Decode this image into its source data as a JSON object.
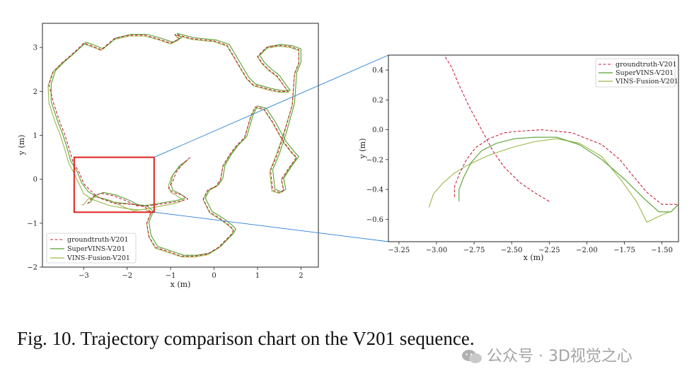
{
  "caption": "Fig. 10.  Trajectory comparison chart on the V201 sequence.",
  "watermark": "公众号 · 3D视觉之心",
  "chart_data": [
    {
      "type": "line",
      "panel": "full-trajectory",
      "title": "",
      "xlabel": "x (m)",
      "ylabel": "y (m)",
      "xlim": [
        -3.95,
        2.4
      ],
      "ylim": [
        -2.0,
        3.55
      ],
      "xticks": [
        "−3",
        "−2",
        "−1",
        "0",
        "1",
        "2"
      ],
      "xtick_values": [
        -3,
        -2,
        -1,
        0,
        1,
        2
      ],
      "yticks": [
        "−2",
        "−1",
        "0",
        "1",
        "2",
        "3"
      ],
      "ytick_values": [
        -2,
        -1,
        0,
        1,
        2,
        3
      ],
      "grid": false,
      "legend_position": "lower-left",
      "zoom_box": {
        "x": [
          -3.22,
          -1.38
        ],
        "y": [
          -0.75,
          0.5
        ],
        "color": "#e02020"
      },
      "series": [
        {
          "name": "groundtruth-V201",
          "color": "#c8223a",
          "dash": "4,2.5",
          "x": [
            -0.55,
            -0.72,
            -0.88,
            -0.95,
            -1.05,
            -0.95,
            -0.75,
            -0.6,
            -0.8,
            -1.6,
            -1.85,
            -2.3,
            -2.65,
            -2.8,
            -3.0,
            -3.1,
            -3.25,
            -3.35,
            -3.45,
            -3.55,
            -3.7,
            -3.8,
            -3.7,
            -3.5,
            -3.3,
            -3.1,
            -3.0,
            -2.85,
            -2.6,
            -2.3,
            -1.95,
            -1.6,
            -1.3,
            -1.0,
            -0.8,
            -0.9,
            -0.5,
            0.0,
            0.3,
            0.6,
            0.75,
            0.9,
            1.25,
            1.5,
            1.7,
            1.45,
            1.25,
            1.1,
            1.0,
            1.2,
            1.5,
            1.75,
            1.95,
            1.95,
            1.85,
            1.8,
            1.6,
            1.45,
            1.3,
            1.35,
            1.5,
            1.6,
            1.55,
            1.75,
            1.9,
            1.8,
            1.6,
            1.35,
            1.15,
            0.95,
            0.85,
            0.7,
            0.5,
            0.35,
            0.2,
            0.15,
            0.05,
            -0.15,
            -0.25,
            -0.1,
            0.15,
            0.35,
            0.45,
            0.4,
            0.3,
            0.1,
            -0.15,
            -0.45,
            -0.75,
            -0.95,
            -1.35,
            -1.5,
            -1.55,
            -1.45,
            -1.6,
            -1.8,
            -2.0,
            -2.3,
            -2.6,
            -2.8,
            -2.9,
            -2.95
          ],
          "y": [
            0.5,
            0.35,
            0.15,
            -0.05,
            -0.2,
            -0.3,
            -0.35,
            -0.45,
            -0.5,
            -0.62,
            -0.57,
            -0.55,
            -0.42,
            -0.3,
            -0.1,
            0.15,
            0.4,
            0.75,
            1.05,
            1.3,
            1.75,
            2.15,
            2.45,
            2.65,
            2.82,
            3.0,
            3.1,
            3.05,
            2.95,
            3.2,
            3.28,
            3.28,
            3.2,
            3.1,
            3.2,
            3.3,
            3.2,
            3.15,
            3.05,
            2.55,
            2.3,
            2.15,
            2.05,
            2.0,
            2.0,
            2.35,
            2.5,
            2.65,
            2.8,
            3.0,
            3.05,
            3.02,
            2.95,
            2.65,
            2.4,
            1.7,
            1.0,
            0.55,
            0.2,
            -0.25,
            -0.3,
            -0.25,
            0.0,
            0.3,
            0.5,
            0.6,
            0.85,
            1.3,
            1.6,
            1.65,
            1.45,
            0.95,
            0.75,
            0.55,
            0.3,
            0.0,
            -0.15,
            -0.25,
            -0.45,
            -0.75,
            -0.9,
            -1.05,
            -1.15,
            -1.25,
            -1.35,
            -1.55,
            -1.7,
            -1.75,
            -1.75,
            -1.68,
            -1.55,
            -1.3,
            -1.0,
            -0.75,
            -0.62,
            -0.6,
            -0.5,
            -0.38,
            -0.32,
            -0.4,
            -0.55,
            -0.55
          ]
        },
        {
          "name": "SuperVINS-V201",
          "color": "#55a030",
          "dash": "",
          "x": [
            -0.6,
            -0.8,
            -0.95,
            -1.0,
            -0.95,
            -0.8,
            -0.65,
            -0.85,
            -1.6,
            -1.9,
            -2.3,
            -2.7,
            -2.9,
            -3.05,
            -3.15,
            -3.3,
            -3.4,
            -3.5,
            -3.6,
            -3.75,
            -3.75,
            -3.65,
            -3.45,
            -3.25,
            -3.05,
            -2.95,
            -2.8,
            -2.55,
            -2.25,
            -1.9,
            -1.55,
            -1.25,
            -0.95,
            -0.75,
            -0.85,
            -0.45,
            0.05,
            0.35,
            0.65,
            0.8,
            0.95,
            1.3,
            1.55,
            1.75,
            1.5,
            1.3,
            1.15,
            1.05,
            1.25,
            1.55,
            1.8,
            2.0,
            2.0,
            1.9,
            1.85,
            1.65,
            1.5,
            1.35,
            1.4,
            1.55,
            1.65,
            1.6,
            1.8,
            1.95,
            1.85,
            1.65,
            1.4,
            1.2,
            1.0,
            0.9,
            0.75,
            0.55,
            0.4,
            0.25,
            0.2,
            0.1,
            -0.1,
            -0.2,
            -0.05,
            0.2,
            0.4,
            0.5,
            0.45,
            0.35,
            0.15,
            -0.1,
            -0.4,
            -0.7,
            -0.9,
            -1.3,
            -1.45,
            -1.5,
            -1.4,
            -1.55,
            -1.75,
            -1.95,
            -2.25,
            -2.55,
            -2.75,
            -2.85,
            -2.9
          ],
          "y": [
            0.45,
            0.3,
            0.1,
            -0.1,
            -0.25,
            -0.32,
            -0.42,
            -0.48,
            -0.6,
            -0.57,
            -0.52,
            -0.4,
            -0.28,
            -0.08,
            0.17,
            0.42,
            0.77,
            1.07,
            1.32,
            1.77,
            2.17,
            2.47,
            2.67,
            2.84,
            3.02,
            3.12,
            3.07,
            2.97,
            3.22,
            3.3,
            3.3,
            3.22,
            3.12,
            3.22,
            3.32,
            3.22,
            3.17,
            3.07,
            2.57,
            2.32,
            2.17,
            2.07,
            2.02,
            2.02,
            2.37,
            2.52,
            2.67,
            2.82,
            3.02,
            3.07,
            3.04,
            2.97,
            2.67,
            2.42,
            1.72,
            1.02,
            0.57,
            0.22,
            -0.23,
            -0.28,
            -0.23,
            0.02,
            0.32,
            0.52,
            0.62,
            0.87,
            1.32,
            1.62,
            1.67,
            1.47,
            0.97,
            0.77,
            0.57,
            0.32,
            0.02,
            -0.13,
            -0.23,
            -0.43,
            -0.73,
            -0.88,
            -1.03,
            -1.13,
            -1.23,
            -1.33,
            -1.53,
            -1.68,
            -1.73,
            -1.73,
            -1.66,
            -1.53,
            -1.28,
            -0.98,
            -0.73,
            -0.6,
            -0.58,
            -0.48,
            -0.36,
            -0.3,
            -0.38,
            -0.53,
            -0.53
          ]
        },
        {
          "name": "VINS-Fusion-V201",
          "color": "#9ab848",
          "dash": "",
          "x": [
            -0.62,
            -0.82,
            -0.98,
            -1.05,
            -1.0,
            -0.85,
            -0.7,
            -0.9,
            -1.7,
            -2.0,
            -2.4,
            -2.8,
            -3.0,
            -3.1,
            -3.22,
            -3.35,
            -3.45,
            -3.55,
            -3.65,
            -3.8,
            -3.82,
            -3.72,
            -3.52,
            -3.3,
            -3.1,
            -3.0,
            -2.85,
            -2.6,
            -2.3,
            -1.95,
            -1.6,
            -1.3,
            -1.0,
            -0.8,
            -0.9,
            -0.5,
            0.0,
            0.3,
            0.6,
            0.75,
            0.9,
            1.25,
            1.5,
            1.72,
            1.45,
            1.25,
            1.1,
            1.0,
            1.2,
            1.5,
            1.75,
            1.95,
            1.95,
            1.85,
            1.8,
            1.58,
            1.42,
            1.28,
            1.33,
            1.5,
            1.6,
            1.55,
            1.75,
            1.9,
            1.8,
            1.6,
            1.35,
            1.15,
            0.95,
            0.85,
            0.7,
            0.5,
            0.35,
            0.2,
            0.15,
            0.05,
            -0.15,
            -0.25,
            -0.1,
            0.15,
            0.35,
            0.45,
            0.4,
            0.3,
            0.1,
            -0.15,
            -0.45,
            -0.75,
            -0.95,
            -1.35,
            -1.5,
            -1.55,
            -1.45,
            -1.6,
            -1.85,
            -2.1,
            -2.4,
            -2.7,
            -2.9,
            -3.0,
            -3.05
          ],
          "y": [
            0.42,
            0.26,
            0.06,
            -0.14,
            -0.3,
            -0.38,
            -0.48,
            -0.55,
            -0.7,
            -0.67,
            -0.6,
            -0.46,
            -0.33,
            -0.12,
            0.13,
            0.38,
            0.73,
            1.03,
            1.28,
            1.73,
            2.13,
            2.43,
            2.63,
            2.8,
            2.98,
            3.08,
            3.03,
            2.93,
            3.18,
            3.26,
            3.26,
            3.18,
            3.08,
            3.18,
            3.28,
            3.18,
            3.13,
            3.03,
            2.53,
            2.28,
            2.13,
            2.03,
            1.98,
            1.98,
            2.33,
            2.48,
            2.63,
            2.78,
            2.98,
            3.03,
            3.0,
            2.93,
            2.63,
            2.38,
            1.68,
            0.98,
            0.53,
            0.18,
            -0.27,
            -0.32,
            -0.27,
            -0.02,
            0.28,
            0.48,
            0.58,
            0.83,
            1.28,
            1.58,
            1.63,
            1.43,
            0.93,
            0.73,
            0.53,
            0.28,
            -0.02,
            -0.17,
            -0.27,
            -0.47,
            -0.77,
            -0.92,
            -1.07,
            -1.17,
            -1.27,
            -1.37,
            -1.57,
            -1.72,
            -1.77,
            -1.77,
            -1.7,
            -1.57,
            -1.32,
            -1.02,
            -0.77,
            -0.68,
            -0.72,
            -0.62,
            -0.48,
            -0.4,
            -0.45,
            -0.58,
            -0.58
          ]
        }
      ]
    },
    {
      "type": "line",
      "panel": "zoom",
      "title": "",
      "xlabel": "x (m)",
      "ylabel": "y (m)",
      "xlim": [
        -3.32,
        -1.39
      ],
      "ylim": [
        -0.75,
        0.5
      ],
      "xticks": [
        "−3.25",
        "−3.00",
        "−2.75",
        "−2.50",
        "−2.25",
        "−2.00",
        "−1.75",
        "−1.50"
      ],
      "xtick_values": [
        -3.25,
        -3.0,
        -2.75,
        -2.5,
        -2.25,
        -2.0,
        -1.75,
        -1.5
      ],
      "yticks": [
        "−0.6",
        "−0.4",
        "−0.2",
        "0.0",
        "0.2",
        "0.4"
      ],
      "ytick_values": [
        -0.6,
        -0.4,
        -0.2,
        0.0,
        0.2,
        0.4
      ],
      "grid": false,
      "legend_position": "top-right",
      "series": [
        {
          "name": "groundtruth-V201",
          "color": "#c8223a",
          "dash": "4,2.5",
          "x": [
            -2.88,
            -2.88,
            -2.85,
            -2.8,
            -2.74,
            -2.65,
            -2.55,
            -2.45,
            -2.3,
            -2.1,
            -1.9,
            -1.78,
            -1.7,
            -1.6,
            -1.5,
            -1.4
          ],
          "y": [
            -0.45,
            -0.38,
            -0.3,
            -0.2,
            -0.12,
            -0.06,
            -0.02,
            -0.01,
            0.0,
            -0.02,
            -0.1,
            -0.2,
            -0.3,
            -0.42,
            -0.5,
            -0.5
          ],
          "extra_x": [
            -2.25,
            -2.35,
            -2.45,
            -2.55,
            -2.62,
            -2.7,
            -2.78,
            -2.85,
            -2.9,
            -2.95
          ],
          "extra_y": [
            -0.48,
            -0.42,
            -0.35,
            -0.25,
            -0.15,
            0.0,
            0.15,
            0.3,
            0.42,
            0.5
          ]
        },
        {
          "name": "SuperVINS-V201",
          "color": "#55a030",
          "dash": "",
          "x": [
            -2.85,
            -2.85,
            -2.82,
            -2.77,
            -2.7,
            -2.6,
            -2.48,
            -2.35,
            -2.2,
            -2.05,
            -1.9,
            -1.75,
            -1.62,
            -1.52,
            -1.44,
            -1.39
          ],
          "y": [
            -0.48,
            -0.4,
            -0.32,
            -0.22,
            -0.14,
            -0.09,
            -0.06,
            -0.05,
            -0.05,
            -0.1,
            -0.2,
            -0.33,
            -0.46,
            -0.55,
            -0.55,
            -0.5
          ]
        },
        {
          "name": "VINS-Fusion-V201",
          "color": "#9ab848",
          "dash": "",
          "x": [
            -3.05,
            -3.02,
            -2.96,
            -2.88,
            -2.78,
            -2.65,
            -2.5,
            -2.35,
            -2.2,
            -2.05,
            -1.9,
            -1.77,
            -1.67,
            -1.6,
            -1.52,
            -1.45
          ],
          "y": [
            -0.52,
            -0.43,
            -0.36,
            -0.29,
            -0.23,
            -0.17,
            -0.12,
            -0.08,
            -0.06,
            -0.09,
            -0.18,
            -0.34,
            -0.48,
            -0.62,
            -0.58,
            -0.55
          ]
        }
      ]
    }
  ]
}
